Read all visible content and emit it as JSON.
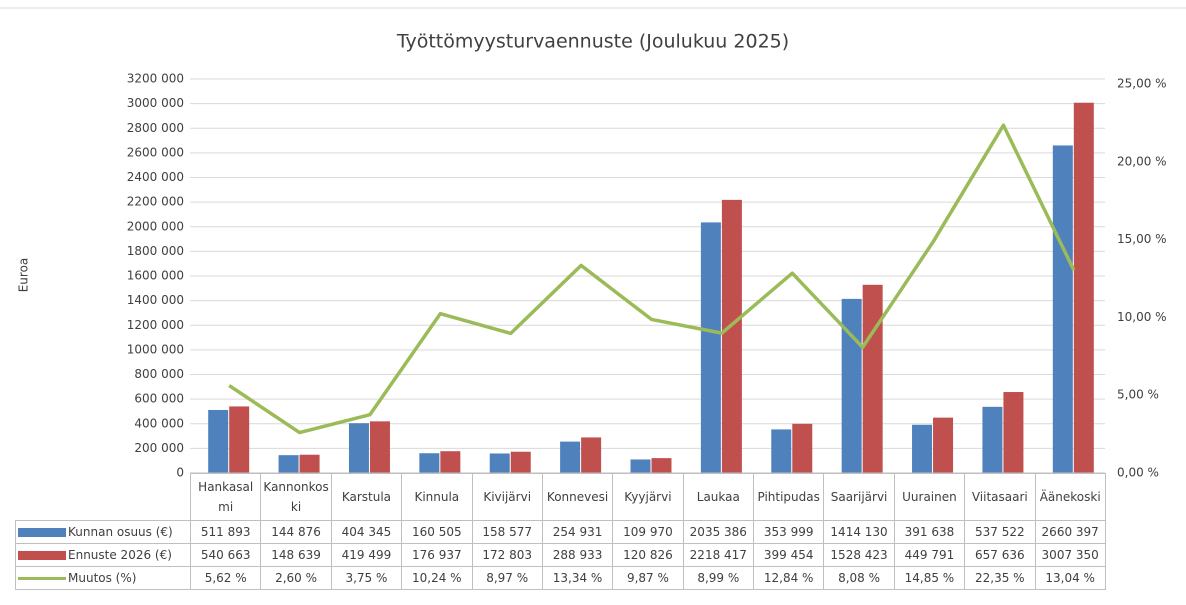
{
  "chart_data": {
    "type": "bar",
    "title": "Työttömyysturvaennuste (Joulukuu 2025)",
    "y_label": "Euroa",
    "categories": [
      "Hankasalmi",
      "Kannonkoski",
      "Karstula",
      "Kinnula",
      "Kivijärvi",
      "Konnevesi",
      "Kyyjärvi",
      "Laukaa",
      "Pihtipudas",
      "Saarijärvi",
      "Uurainen",
      "Viitasaari",
      "Äänekoski"
    ],
    "series": [
      {
        "name": "Kunnan osuus (€)",
        "color": "#4f81bd",
        "values": [
          511893,
          144876,
          404345,
          160505,
          158577,
          254931,
          109970,
          2035386,
          353999,
          1414130,
          391638,
          537522,
          2660397
        ],
        "value_labels": [
          "511 893",
          "144 876",
          "404 345",
          "160 505",
          "158 577",
          "254 931",
          "109 970",
          "2035 386",
          "353 999",
          "1414 130",
          "391 638",
          "537 522",
          "2660 397"
        ]
      },
      {
        "name": "Ennuste 2026 (€)",
        "color": "#c0504d",
        "values": [
          540663,
          148639,
          419499,
          176937,
          172803,
          288933,
          120826,
          2218417,
          399454,
          1528423,
          449791,
          657636,
          3007350
        ],
        "value_labels": [
          "540 663",
          "148 639",
          "419 499",
          "176 937",
          "172 803",
          "288 933",
          "120 826",
          "2218 417",
          "399 454",
          "1528 423",
          "449 791",
          "657 636",
          "3007 350"
        ]
      },
      {
        "name": "Muutos (%)",
        "color": "#9bbb59",
        "type": "line",
        "axis": "y2",
        "values": [
          5.62,
          2.6,
          3.75,
          10.24,
          8.97,
          13.34,
          9.87,
          8.99,
          12.84,
          8.08,
          14.85,
          22.35,
          13.04
        ],
        "value_labels": [
          "5,62 %",
          "2,60 %",
          "3,75 %",
          "10,24 %",
          "8,97 %",
          "13,34 %",
          "9,87 %",
          "8,99 %",
          "12,84 %",
          "8,08 %",
          "14,85 %",
          "22,35 %",
          "13,04 %"
        ]
      }
    ],
    "ylim": [
      0,
      3200000
    ],
    "yticks": [
      0,
      {
        "value": 200000,
        "label": "200 000"
      },
      {
        "value": 400000,
        "label": "400 000"
      },
      {
        "value": 600000,
        "label": "600 000"
      },
      {
        "value": 800000,
        "label": "800 000"
      },
      {
        "value": 1000000,
        "label": "1000 000"
      },
      {
        "value": 1200000,
        "label": "1200 000"
      },
      {
        "value": 1400000,
        "label": "1400 000"
      },
      {
        "value": 1600000,
        "label": "1600 000"
      },
      {
        "value": 1800000,
        "label": "1800 000"
      },
      {
        "value": 2000000,
        "label": "2000 000"
      },
      {
        "value": 2200000,
        "label": "2200 000"
      },
      {
        "value": 2400000,
        "label": "2400 000"
      },
      {
        "value": 2600000,
        "label": "2600 000"
      },
      {
        "value": 2800000,
        "label": "2800 000"
      },
      {
        "value": 3000000,
        "label": "3000 000"
      },
      {
        "value": 3200000,
        "label": "3200 000"
      }
    ],
    "y2lim": [
      0,
      25
    ],
    "y2ticks": [
      {
        "value": 0,
        "label": "0,00 %"
      },
      {
        "value": 5,
        "label": "5,00 %"
      },
      {
        "value": 10,
        "label": "10,00 %"
      },
      {
        "value": 15,
        "label": "15,00 %"
      },
      {
        "value": 20,
        "label": "20,00 %"
      },
      {
        "value": 25,
        "label": "25,00 %"
      }
    ],
    "grid": true,
    "data_table": true
  }
}
